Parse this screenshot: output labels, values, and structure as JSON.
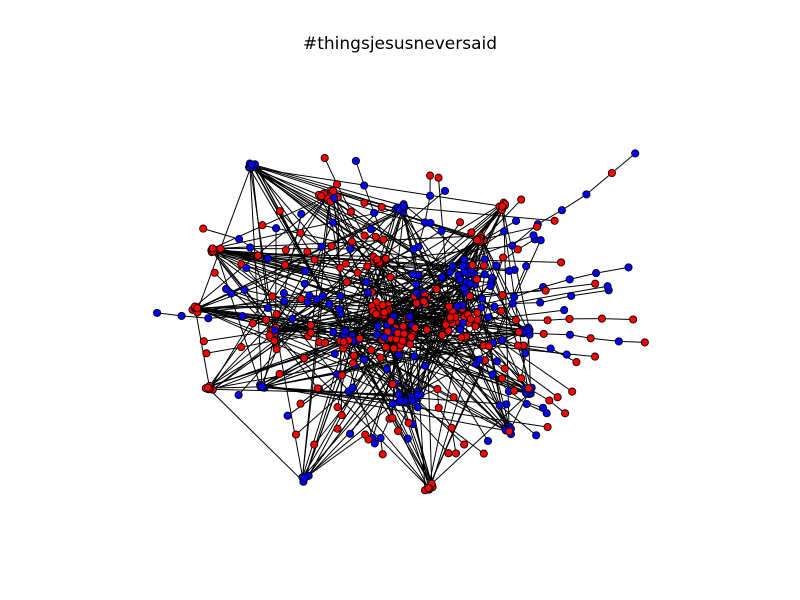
{
  "title": "#thingsjesusneversaid",
  "legend": "none",
  "axes": "hidden",
  "colors": {
    "group_a": "#ff0000",
    "group_b": "#0000ff",
    "edge": "#000000",
    "node_outline": "#000000",
    "background": "#ffffff"
  }
}
